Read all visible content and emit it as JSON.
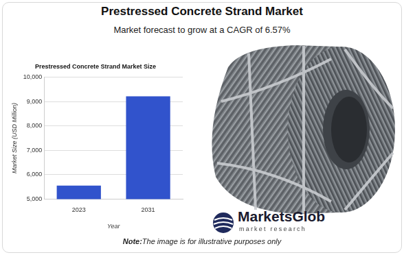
{
  "header": {
    "title": "Prestressed Concrete Strand Market",
    "subtitle": "Market forecast to grow at a CAGR of 6.57%"
  },
  "chart_data": {
    "type": "bar",
    "title": "Prestressed Concrete Strand Market Size",
    "x_label": "Year",
    "y_label": "Market Size (USD Million)",
    "categories": [
      "2023",
      "2031"
    ],
    "values": [
      5550,
      9220
    ],
    "color": "#3153cc",
    "ylim": [
      5000,
      10000
    ],
    "yticks": [
      {
        "value": 5000,
        "label": "5,000"
      },
      {
        "value": 6000,
        "label": "6,000"
      },
      {
        "value": 7000,
        "label": "7,000"
      },
      {
        "value": 8000,
        "label": "8,000"
      },
      {
        "value": 9000,
        "label": "9,000"
      },
      {
        "value": 10000,
        "label": "10,000"
      }
    ],
    "grid": true
  },
  "logo": {
    "name": "MarketsGlob",
    "tagline": "market research"
  },
  "note": {
    "label": "Note:",
    "text": "The image is for illustrative purposes only"
  }
}
